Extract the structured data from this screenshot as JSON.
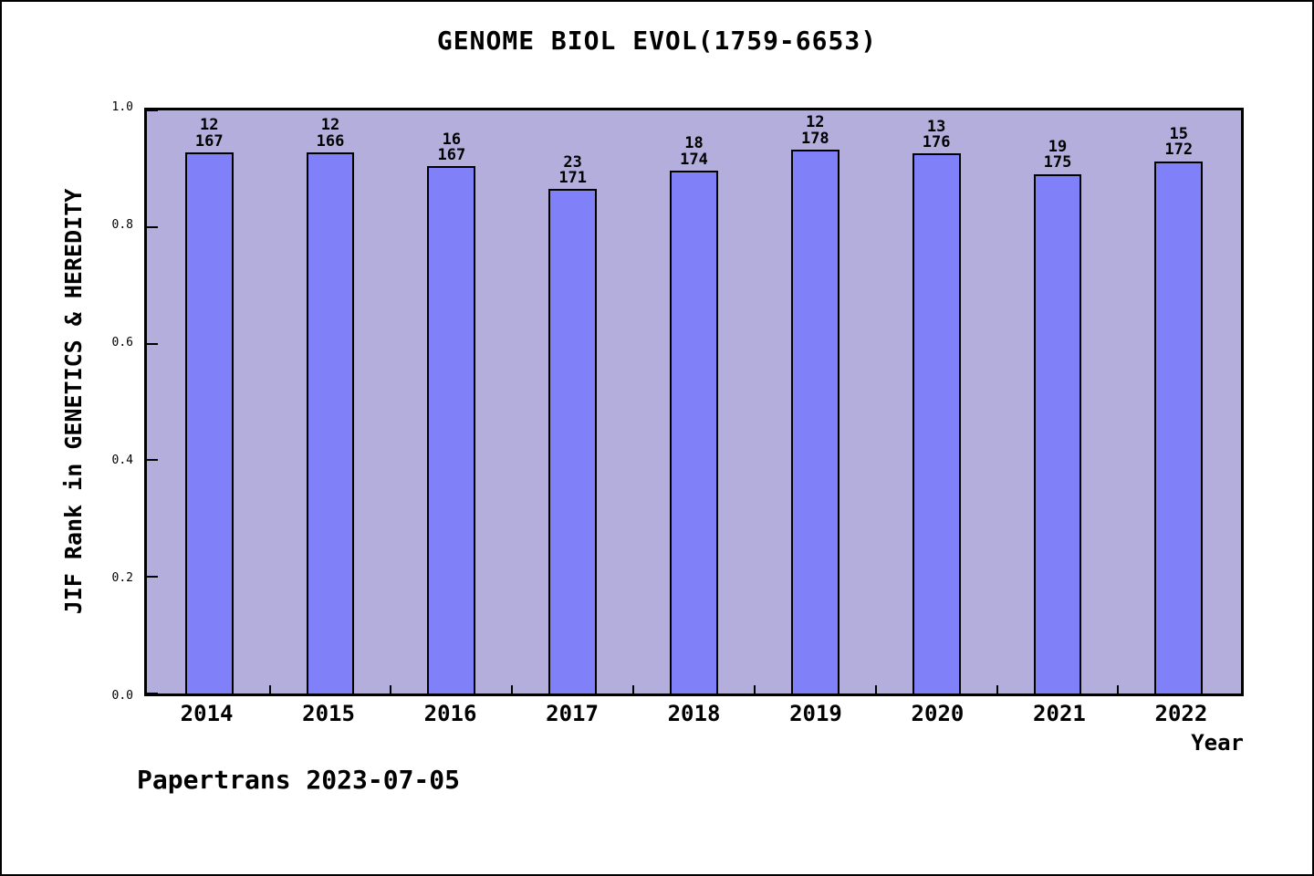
{
  "frame": {
    "background": "#ffffff",
    "border_color": "#000000"
  },
  "title": "GENOME BIOL EVOL(1759-6653)",
  "footer": "Papertrans 2023-07-05",
  "chart_data": {
    "type": "bar",
    "title": "GENOME BIOL EVOL(1759-6653)",
    "xlabel": "Year",
    "ylabel": "JIF Rank in GENETICS & HEREDITY",
    "ylim": [
      0.0,
      1.0
    ],
    "ytick_labels": [
      "0.0",
      "0.2",
      "0.4",
      "0.6",
      "0.8",
      "1.0"
    ],
    "grid": false,
    "legend": "none",
    "plot_background": "#b4aedd",
    "bar_fill": "#8081f8",
    "bar_edge": "#000000",
    "categories": [
      "2014",
      "2015",
      "2016",
      "2017",
      "2018",
      "2019",
      "2020",
      "2021",
      "2022"
    ],
    "series": [
      {
        "name": "JIF rank position (1 - rank/total)",
        "values": [
          0.928,
          0.928,
          0.904,
          0.865,
          0.897,
          0.933,
          0.926,
          0.891,
          0.913
        ]
      }
    ],
    "bar_labels": [
      {
        "rank": 12,
        "total": 167
      },
      {
        "rank": 12,
        "total": 166
      },
      {
        "rank": 16,
        "total": 167
      },
      {
        "rank": 23,
        "total": 171
      },
      {
        "rank": 18,
        "total": 174
      },
      {
        "rank": 12,
        "total": 178
      },
      {
        "rank": 13,
        "total": 176
      },
      {
        "rank": 19,
        "total": 175
      },
      {
        "rank": 15,
        "total": 172
      }
    ],
    "layout": {
      "first_bar_center_pct": 5.69,
      "bar_spacing_pct": 11.0775,
      "bar_width_pct": 4.4
    }
  }
}
